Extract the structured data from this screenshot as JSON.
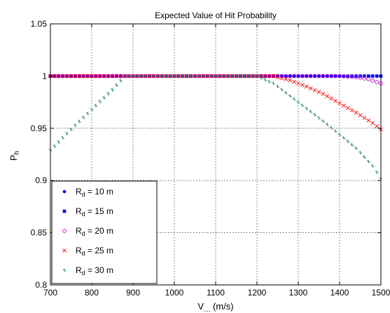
{
  "chart_data": {
    "type": "scatter",
    "title": "Expected Value of Hit Probability",
    "xlabel": {
      "main": "V",
      "sub": "…",
      "unit": "(m/s)"
    },
    "ylabel": {
      "main": "P",
      "sub": "h"
    },
    "xlim": [
      700,
      1500
    ],
    "ylim": [
      0.8,
      1.05
    ],
    "xticks": [
      "700",
      "800",
      "900",
      "1000",
      "1100",
      "1200",
      "1300",
      "1400",
      "1500"
    ],
    "yticks": [
      "0.8",
      "0.85",
      "0.9",
      "0.95",
      "1",
      "1.05"
    ],
    "grid": "on",
    "legend_position": "bottom-left",
    "series": [
      {
        "name": {
          "main": "R",
          "sub": "d",
          "rest": " = 10 m"
        },
        "marker": "dot",
        "color": "#0000ff",
        "x": [
          700,
          1500
        ],
        "y": [
          1.0,
          1.0
        ]
      },
      {
        "name": {
          "main": "R",
          "sub": "d",
          "rest": " = 15 m"
        },
        "marker": "square",
        "color": "#0000ff",
        "x": [
          700,
          1500
        ],
        "y": [
          1.0,
          1.0
        ]
      },
      {
        "name": {
          "main": "R",
          "sub": "d",
          "rest": " = 20 m"
        },
        "marker": "circle",
        "color": "#cc00cc",
        "x": [
          700,
          1400,
          1440,
          1470,
          1500
        ],
        "y": [
          1.0,
          1.0,
          0.999,
          0.997,
          0.993
        ]
      },
      {
        "name": {
          "main": "R",
          "sub": "d",
          "rest": " = 25 m"
        },
        "marker": "x",
        "color": "#ff0000",
        "x": [
          700,
          1240,
          1280,
          1320,
          1360,
          1400,
          1440,
          1480,
          1500
        ],
        "y": [
          1.0,
          1.0,
          0.996,
          0.99,
          0.983,
          0.974,
          0.965,
          0.955,
          0.949
        ]
      },
      {
        "name": {
          "main": "R",
          "sub": "d",
          "rest": " = 30 m"
        },
        "marker": "plus",
        "color": "#2e8b57",
        "x": [
          700,
          750,
          800,
          850,
          880,
          1200,
          1240,
          1280,
          1320,
          1360,
          1400,
          1440,
          1480,
          1500
        ],
        "y": [
          0.929,
          0.949,
          0.968,
          0.987,
          1.0,
          1.0,
          0.993,
          0.981,
          0.969,
          0.957,
          0.944,
          0.931,
          0.914,
          0.902
        ]
      }
    ]
  }
}
